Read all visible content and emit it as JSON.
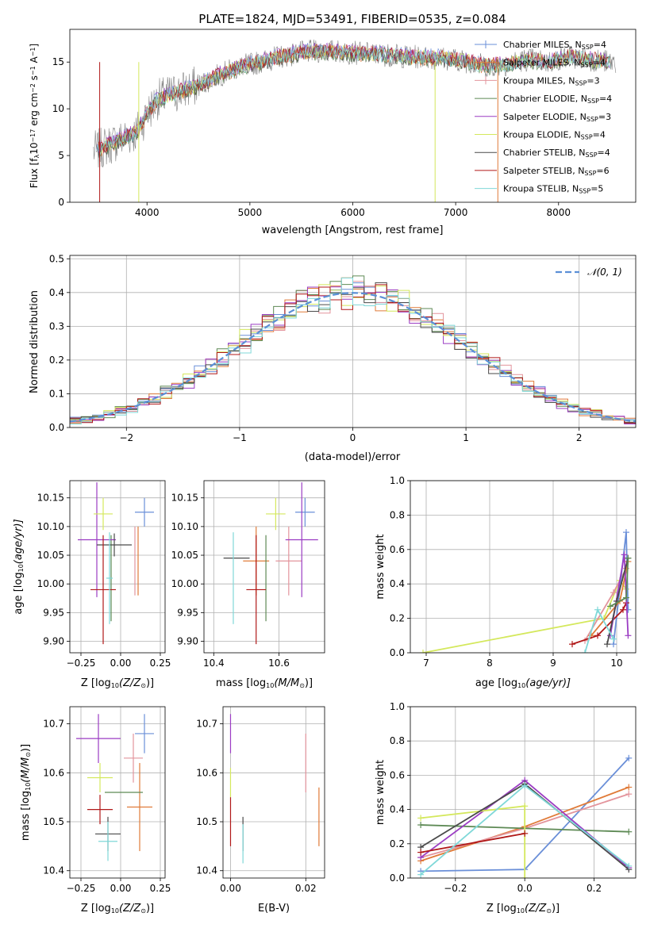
{
  "figure": {
    "title": "PLATE=1824, MJD=53491, FIBERID=0535, z=0.084"
  },
  "colors": {
    "chabrier_miles": "#6a8fd8",
    "salpeter_miles": "#e07b39",
    "kroupa_miles": "#e3949c",
    "chabrier_elodie": "#5e8a55",
    "salpeter_elodie": "#9b3cc3",
    "kroupa_elodie": "#d4e85c",
    "chabrier_stelib": "#4a4a4a",
    "salpeter_stelib": "#b01818",
    "kroupa_stelib": "#7fd8d8",
    "data": "#808080",
    "gaussian": "#5b8fd6",
    "grid": "#b0b0b0"
  },
  "chart_data": [
    {
      "id": "spectrum",
      "type": "line",
      "xlabel": "wavelength [Angstrom, rest frame]",
      "ylabel": "Flux [f",
      "ylabel_parts": [
        "Flux [f",
        "λ",
        "10",
        "−17",
        " erg cm",
        "−2",
        " s",
        "−1",
        " A",
        "−1",
        "]"
      ],
      "xlim": [
        3250,
        8750
      ],
      "ylim": [
        0,
        18.5
      ],
      "xticks": [
        4000,
        5000,
        6000,
        7000,
        8000
      ],
      "yticks": [
        0,
        5,
        10,
        15
      ],
      "grid": false,
      "legend_position": "top-right",
      "continuum": {
        "x": [
          3500,
          3700,
          3900,
          4000,
          4100,
          4300,
          4500,
          4700,
          4900,
          5100,
          5300,
          5500,
          5700,
          5900,
          6100,
          6300,
          6500,
          6700,
          6900,
          7100,
          7300,
          7500,
          7700,
          7900,
          8100,
          8300,
          8500
        ],
        "y": [
          5.5,
          6.5,
          7.5,
          9.5,
          11.0,
          11.8,
          12.5,
          13.6,
          14.5,
          15.0,
          15.6,
          16.0,
          16.2,
          16.1,
          15.9,
          15.8,
          15.6,
          15.5,
          15.4,
          15.1,
          14.6,
          14.8,
          15.3,
          15.0,
          15.6,
          15.3,
          15.0
        ]
      },
      "series": [
        {
          "name": "Chabrier MILES, N",
          "sub": "SSP",
          "suffix": "=4",
          "color_key": "chabrier_miles"
        },
        {
          "name": "Salpeter MILES, N",
          "sub": "SSP",
          "suffix": "=4",
          "color_key": "salpeter_miles"
        },
        {
          "name": "Kroupa MILES, N",
          "sub": "SSP",
          "suffix": "=3",
          "color_key": "kroupa_miles"
        },
        {
          "name": "Chabrier ELODIE, N",
          "sub": "SSP",
          "suffix": "=4",
          "color_key": "chabrier_elodie"
        },
        {
          "name": "Salpeter ELODIE, N",
          "sub": "SSP",
          "suffix": "=3",
          "color_key": "salpeter_elodie"
        },
        {
          "name": "Kroupa ELODIE, N",
          "sub": "SSP",
          "suffix": "=4",
          "color_key": "kroupa_elodie"
        },
        {
          "name": "Chabrier STELIB, N",
          "sub": "SSP",
          "suffix": "=4",
          "color_key": "chabrier_stelib"
        },
        {
          "name": "Salpeter STELIB, N",
          "sub": "SSP",
          "suffix": "=6",
          "color_key": "salpeter_stelib"
        },
        {
          "name": "Kroupa STELIB, N",
          "sub": "SSP",
          "suffix": "=5",
          "color_key": "kroupa_stelib"
        }
      ]
    },
    {
      "id": "residuals",
      "type": "line",
      "xlabel": "(data-model)/error",
      "ylabel": "Normed distribution",
      "xlim": [
        -2.5,
        2.5
      ],
      "ylim": [
        0,
        0.51
      ],
      "xticks": [
        -2,
        -1,
        0,
        1,
        2
      ],
      "yticks": [
        0.0,
        0.1,
        0.2,
        0.3,
        0.4,
        0.5
      ],
      "grid": true,
      "legend_position": "top-right",
      "legend_label": "𝒩(0, 1)",
      "gaussian": {
        "mu": 0,
        "sigma": 1
      },
      "bin_width": 0.1
    },
    {
      "id": "age_vs_Z",
      "type": "scatter",
      "xlabel": "Z [log",
      "xlabel_parts": [
        "Z [log",
        "10",
        "(Z/Z",
        "⊙",
        ")]"
      ],
      "ylabel_parts": [
        "age  [log",
        "10",
        "(age/yr)]"
      ],
      "xlim": [
        -0.32,
        0.28
      ],
      "ylim": [
        9.88,
        10.18
      ],
      "xticks": [
        -0.25,
        0.0,
        0.25
      ],
      "xticklabels": [
        "−0.25",
        "0.00",
        "0.25"
      ],
      "yticks": [
        9.9,
        9.95,
        10.0,
        10.05,
        10.1,
        10.15
      ],
      "grid": true,
      "points": [
        {
          "x": 0.15,
          "xerr": 0.06,
          "y": 10.125,
          "yerr": 0.025,
          "color_key": "chabrier_miles"
        },
        {
          "x": 0.11,
          "xerr": 0.0,
          "y": 10.04,
          "yerr": 0.06,
          "color_key": "salpeter_miles"
        },
        {
          "x": 0.09,
          "xerr": 0.0,
          "y": 10.04,
          "yerr": 0.06,
          "color_key": "kroupa_miles"
        },
        {
          "x": -0.06,
          "xerr": 0.0,
          "y": 10.01,
          "yerr": 0.075,
          "color_key": "chabrier_elodie"
        },
        {
          "x": -0.15,
          "xerr": 0.12,
          "y": 10.077,
          "yerr": 0.1,
          "color_key": "salpeter_elodie"
        },
        {
          "x": -0.11,
          "xerr": 0.06,
          "y": 10.122,
          "yerr": 0.028,
          "color_key": "kroupa_elodie"
        },
        {
          "x": -0.04,
          "xerr": 0.11,
          "y": 10.068,
          "yerr": 0.02,
          "color_key": "chabrier_stelib"
        },
        {
          "x": -0.11,
          "xerr": 0.08,
          "y": 9.99,
          "yerr": 0.095,
          "color_key": "salpeter_stelib"
        },
        {
          "x": -0.07,
          "xerr": 0.02,
          "y": 10.01,
          "yerr": 0.08,
          "color_key": "kroupa_stelib"
        }
      ]
    },
    {
      "id": "age_vs_mass",
      "type": "scatter",
      "xlabel_parts": [
        "mass [log",
        "10",
        "(M/M",
        "⊙",
        ")]"
      ],
      "xlim": [
        10.37,
        10.74
      ],
      "ylim": [
        9.88,
        10.18
      ],
      "xticks": [
        10.4,
        10.6
      ],
      "xticklabels": [
        "10.4",
        "10.6"
      ],
      "yticks": [
        9.9,
        9.95,
        10.0,
        10.05,
        10.1,
        10.15
      ],
      "grid": true,
      "points": [
        {
          "x": 10.68,
          "xerr": 0.03,
          "y": 10.125,
          "yerr": 0.025,
          "color_key": "chabrier_miles"
        },
        {
          "x": 10.53,
          "xerr": 0.04,
          "y": 10.04,
          "yerr": 0.06,
          "color_key": "salpeter_miles"
        },
        {
          "x": 10.63,
          "xerr": 0.04,
          "y": 10.04,
          "yerr": 0.06,
          "color_key": "kroupa_miles"
        },
        {
          "x": 10.56,
          "xerr": 0.0,
          "y": 10.01,
          "yerr": 0.075,
          "color_key": "chabrier_elodie"
        },
        {
          "x": 10.67,
          "xerr": 0.05,
          "y": 10.077,
          "yerr": 0.1,
          "color_key": "salpeter_elodie"
        },
        {
          "x": 10.59,
          "xerr": 0.03,
          "y": 10.122,
          "yerr": 0.028,
          "color_key": "kroupa_elodie"
        },
        {
          "x": 10.47,
          "xerr": 0.04,
          "y": 10.045,
          "yerr": 0.0,
          "color_key": "chabrier_stelib"
        },
        {
          "x": 10.53,
          "xerr": 0.03,
          "y": 9.99,
          "yerr": 0.095,
          "color_key": "salpeter_stelib"
        },
        {
          "x": 10.46,
          "xerr": 0.0,
          "y": 10.01,
          "yerr": 0.08,
          "color_key": "kroupa_stelib"
        }
      ]
    },
    {
      "id": "weight_vs_age",
      "type": "line",
      "xlabel_parts": [
        "age  [log",
        "10",
        "(age/yr)]"
      ],
      "ylabel": "mass weight",
      "xlim": [
        6.75,
        10.3
      ],
      "ylim": [
        0.0,
        1.0
      ],
      "xticks": [
        7,
        8,
        9,
        10
      ],
      "yticks": [
        0.0,
        0.2,
        0.4,
        0.6,
        0.8,
        1.0
      ],
      "grid": true,
      "series": [
        {
          "color_key": "kroupa_elodie",
          "x": [
            6.95,
            9.8,
            10.05,
            10.15
          ],
          "y": [
            0.0,
            0.2,
            0.42,
            0.37
          ]
        },
        {
          "color_key": "kroupa_miles",
          "x": [
            9.5,
            9.95,
            10.15
          ],
          "y": [
            0.07,
            0.35,
            0.49
          ]
        },
        {
          "color_key": "chabrier_miles",
          "x": [
            9.95,
            10.15,
            10.18
          ],
          "y": [
            0.05,
            0.7,
            0.25
          ]
        },
        {
          "color_key": "salpeter_miles",
          "x": [
            9.6,
            10.05,
            10.18
          ],
          "y": [
            0.1,
            0.3,
            0.53
          ]
        },
        {
          "color_key": "salpeter_stelib",
          "x": [
            9.3,
            9.7,
            10.1,
            10.15
          ],
          "y": [
            0.05,
            0.1,
            0.25,
            0.29
          ]
        },
        {
          "color_key": "salpeter_elodie",
          "x": [
            9.9,
            10.12,
            10.18
          ],
          "y": [
            0.1,
            0.57,
            0.1
          ]
        },
        {
          "color_key": "chabrier_stelib",
          "x": [
            9.85,
            10.0,
            10.18
          ],
          "y": [
            0.05,
            0.3,
            0.55
          ]
        },
        {
          "color_key": "chabrier_elodie",
          "x": [
            9.9,
            10.15,
            10.18
          ],
          "y": [
            0.27,
            0.32,
            0.55
          ]
        },
        {
          "color_key": "kroupa_stelib",
          "x": [
            9.5,
            9.7,
            9.95
          ],
          "y": [
            0.0,
            0.25,
            0.08
          ]
        }
      ]
    },
    {
      "id": "mass_vs_Z",
      "type": "scatter",
      "xlabel_parts": [
        "Z [log",
        "10",
        "(Z/Z",
        "⊙",
        ")]"
      ],
      "ylabel_parts": [
        "mass [log",
        "10",
        "(M/M",
        "⊙",
        ")]"
      ],
      "xlim": [
        -0.32,
        0.28
      ],
      "ylim": [
        10.385,
        10.735
      ],
      "xticks": [
        -0.25,
        0.0,
        0.25
      ],
      "xticklabels": [
        "−0.25",
        "0.00",
        "0.25"
      ],
      "yticks": [
        10.4,
        10.5,
        10.6,
        10.7
      ],
      "grid": true,
      "points": [
        {
          "x": 0.15,
          "xerr": 0.06,
          "y": 10.68,
          "yerr": 0.04,
          "color_key": "chabrier_miles"
        },
        {
          "x": 0.12,
          "xerr": 0.08,
          "y": 10.53,
          "yerr": 0.09,
          "color_key": "salpeter_miles"
        },
        {
          "x": 0.08,
          "xerr": 0.06,
          "y": 10.63,
          "yerr": 0.05,
          "color_key": "kroupa_miles"
        },
        {
          "x": 0.02,
          "xerr": 0.12,
          "y": 10.56,
          "yerr": 0.0,
          "color_key": "chabrier_elodie"
        },
        {
          "x": -0.14,
          "xerr": 0.14,
          "y": 10.67,
          "yerr": 0.05,
          "color_key": "salpeter_elodie"
        },
        {
          "x": -0.13,
          "xerr": 0.08,
          "y": 10.59,
          "yerr": 0.03,
          "color_key": "kroupa_elodie"
        },
        {
          "x": -0.08,
          "xerr": 0.08,
          "y": 10.475,
          "yerr": 0.035,
          "color_key": "chabrier_stelib"
        },
        {
          "x": -0.13,
          "xerr": 0.08,
          "y": 10.525,
          "yerr": 0.03,
          "color_key": "salpeter_stelib"
        },
        {
          "x": -0.08,
          "xerr": 0.06,
          "y": 10.46,
          "yerr": 0.04,
          "color_key": "kroupa_stelib"
        }
      ]
    },
    {
      "id": "mass_vs_EBV",
      "type": "scatter",
      "xlabel": "E(B-V)",
      "xlim": [
        -0.002,
        0.025
      ],
      "ylim": [
        10.385,
        10.735
      ],
      "xticks": [
        0.0,
        0.02
      ],
      "xticklabels": [
        "0.00",
        "0.02"
      ],
      "yticks": [
        10.4,
        10.5,
        10.6,
        10.7
      ],
      "grid": true,
      "points": [
        {
          "x": 0.0,
          "xerr": 0.0,
          "y": 10.68,
          "yerr": 0.04,
          "color_key": "salpeter_elodie"
        },
        {
          "x": 0.0,
          "xerr": 0.0,
          "y": 10.58,
          "yerr": 0.03,
          "color_key": "kroupa_elodie"
        },
        {
          "x": 0.0,
          "xerr": 0.0,
          "y": 10.5,
          "yerr": 0.05,
          "color_key": "salpeter_stelib"
        },
        {
          "x": 0.0033,
          "xerr": 0.0,
          "y": 10.475,
          "yerr": 0.035,
          "color_key": "chabrier_stelib"
        },
        {
          "x": 0.0033,
          "xerr": 0.0,
          "y": 10.455,
          "yerr": 0.04,
          "color_key": "kroupa_stelib"
        },
        {
          "x": 0.02,
          "xerr": 0.0,
          "y": 10.62,
          "yerr": 0.06,
          "color_key": "kroupa_miles"
        },
        {
          "x": 0.0235,
          "xerr": 0.0,
          "y": 10.51,
          "yerr": 0.06,
          "color_key": "salpeter_miles"
        }
      ]
    },
    {
      "id": "weight_vs_Z",
      "type": "line",
      "xlabel_parts": [
        "Z [log",
        "10",
        "(Z/Z",
        "⊙",
        ")]"
      ],
      "ylabel": "mass weight",
      "xlim": [
        -0.33,
        0.32
      ],
      "ylim": [
        0.0,
        1.0
      ],
      "xticks": [
        -0.2,
        0.0,
        0.2
      ],
      "xticklabels": [
        "−0.2",
        "0.0",
        "0.2"
      ],
      "yticks": [
        0.0,
        0.2,
        0.4,
        0.6,
        0.8,
        1.0
      ],
      "grid": true,
      "series": [
        {
          "color_key": "chabrier_miles",
          "x": [
            -0.3,
            0.0,
            0.3
          ],
          "y": [
            0.04,
            0.05,
            0.7
          ]
        },
        {
          "color_key": "salpeter_miles",
          "x": [
            -0.3,
            0.0,
            0.3
          ],
          "y": [
            0.1,
            0.3,
            0.53
          ]
        },
        {
          "color_key": "kroupa_miles",
          "x": [
            -0.3,
            0.0,
            0.3
          ],
          "y": [
            0.12,
            0.29,
            0.49
          ]
        },
        {
          "color_key": "chabrier_elodie",
          "x": [
            -0.3,
            0.0,
            0.3
          ],
          "y": [
            0.31,
            0.29,
            0.27
          ]
        },
        {
          "color_key": "salpeter_elodie",
          "x": [
            -0.3,
            0.0,
            0.3
          ],
          "y": [
            0.12,
            0.57,
            0.06
          ]
        },
        {
          "color_key": "kroupa_elodie",
          "x": [
            -0.3,
            0.0,
            0.0
          ],
          "y": [
            0.35,
            0.42,
            0.0
          ]
        },
        {
          "color_key": "chabrier_stelib",
          "x": [
            -0.3,
            0.0,
            0.3
          ],
          "y": [
            0.18,
            0.55,
            0.05
          ]
        },
        {
          "color_key": "salpeter_stelib",
          "x": [
            -0.3,
            0.0
          ],
          "y": [
            0.15,
            0.26
          ]
        },
        {
          "color_key": "kroupa_stelib",
          "x": [
            -0.3,
            0.0,
            0.3
          ],
          "y": [
            0.02,
            0.54,
            0.07
          ]
        }
      ]
    }
  ]
}
